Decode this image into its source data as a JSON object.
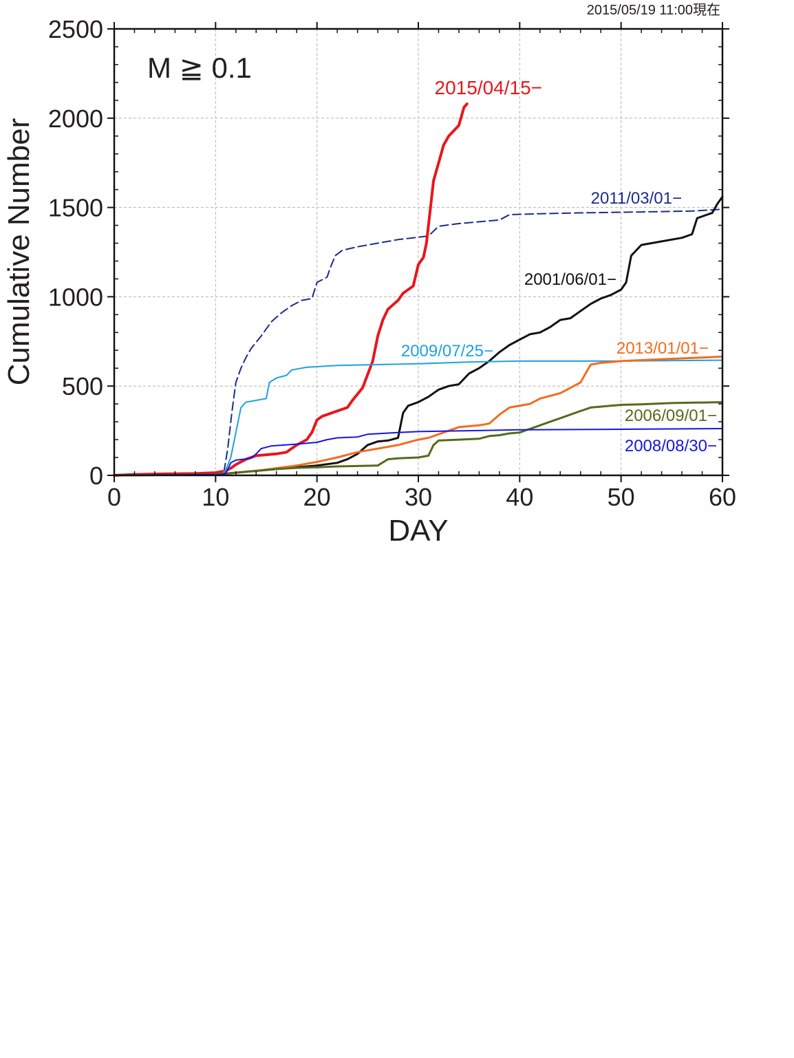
{
  "timestamp": "2015/05/19 11:00現在",
  "chart_data": {
    "type": "line",
    "annotation": "M ≧ 0.1",
    "xlabel": "DAY",
    "ylabel": "Cumulative Number",
    "xlim": [
      0,
      60
    ],
    "ylim": [
      0,
      2500
    ],
    "xticks": [
      0,
      10,
      20,
      30,
      40,
      50,
      60
    ],
    "yticks": [
      0,
      500,
      1000,
      1500,
      2000,
      2500
    ],
    "grid": true,
    "series": [
      {
        "name": "2011/03/01−",
        "color": "#1c2a8c",
        "dashed": true,
        "width": 2,
        "points": [
          [
            0,
            0
          ],
          [
            10.8,
            10
          ],
          [
            11.2,
            150
          ],
          [
            11.6,
            350
          ],
          [
            12,
            520
          ],
          [
            12.5,
            600
          ],
          [
            13,
            660
          ],
          [
            13.5,
            710
          ],
          [
            14.5,
            780
          ],
          [
            15.5,
            860
          ],
          [
            16.5,
            910
          ],
          [
            17.5,
            950
          ],
          [
            18.5,
            980
          ],
          [
            19.5,
            990
          ],
          [
            20,
            1080
          ],
          [
            21,
            1110
          ],
          [
            21.3,
            1160
          ],
          [
            21.8,
            1230
          ],
          [
            22.5,
            1260
          ],
          [
            24,
            1280
          ],
          [
            26,
            1300
          ],
          [
            28,
            1320
          ],
          [
            29.5,
            1330
          ],
          [
            31,
            1340
          ],
          [
            32,
            1395
          ],
          [
            34,
            1410
          ],
          [
            36,
            1420
          ],
          [
            38,
            1430
          ],
          [
            39,
            1460
          ],
          [
            42,
            1465
          ],
          [
            46,
            1470
          ],
          [
            52,
            1475
          ],
          [
            57,
            1480
          ],
          [
            60,
            1490
          ]
        ]
      },
      {
        "name": "2015/04/15−",
        "color": "#e8161b",
        "dashed": false,
        "width": 4,
        "points": [
          [
            0,
            0
          ],
          [
            2,
            5
          ],
          [
            5,
            8
          ],
          [
            8,
            10
          ],
          [
            10,
            15
          ],
          [
            11,
            25
          ],
          [
            11.5,
            40
          ],
          [
            12,
            60
          ],
          [
            13,
            90
          ],
          [
            14,
            110
          ],
          [
            16,
            120
          ],
          [
            17,
            130
          ],
          [
            18,
            170
          ],
          [
            19,
            200
          ],
          [
            19.5,
            240
          ],
          [
            20,
            310
          ],
          [
            20.5,
            330
          ],
          [
            22,
            360
          ],
          [
            23,
            380
          ],
          [
            23.5,
            420
          ],
          [
            24.5,
            490
          ],
          [
            25.5,
            640
          ],
          [
            26,
            780
          ],
          [
            26.5,
            870
          ],
          [
            27,
            930
          ],
          [
            28,
            980
          ],
          [
            28.5,
            1020
          ],
          [
            29,
            1040
          ],
          [
            29.5,
            1060
          ],
          [
            30,
            1180
          ],
          [
            30.5,
            1220
          ],
          [
            30.8,
            1300
          ],
          [
            31.2,
            1500
          ],
          [
            31.5,
            1650
          ],
          [
            32,
            1750
          ],
          [
            32.5,
            1850
          ],
          [
            33,
            1900
          ],
          [
            33.5,
            1930
          ],
          [
            34,
            1960
          ],
          [
            34.5,
            2060
          ],
          [
            34.8,
            2080
          ]
        ]
      },
      {
        "name": "2001/06/01−",
        "color": "#111111",
        "dashed": false,
        "width": 3,
        "points": [
          [
            0,
            0
          ],
          [
            10,
            5
          ],
          [
            12,
            15
          ],
          [
            14,
            25
          ],
          [
            16,
            35
          ],
          [
            18,
            45
          ],
          [
            20,
            55
          ],
          [
            22,
            70
          ],
          [
            23,
            90
          ],
          [
            24,
            120
          ],
          [
            25,
            170
          ],
          [
            26,
            190
          ],
          [
            27,
            195
          ],
          [
            28,
            210
          ],
          [
            28.5,
            350
          ],
          [
            29,
            390
          ],
          [
            30,
            410
          ],
          [
            31,
            440
          ],
          [
            32,
            480
          ],
          [
            33,
            500
          ],
          [
            34,
            510
          ],
          [
            35,
            570
          ],
          [
            36,
            600
          ],
          [
            37,
            640
          ],
          [
            38,
            690
          ],
          [
            39,
            730
          ],
          [
            40,
            760
          ],
          [
            41,
            790
          ],
          [
            42,
            800
          ],
          [
            43,
            830
          ],
          [
            44,
            870
          ],
          [
            45,
            880
          ],
          [
            46,
            920
          ],
          [
            47,
            960
          ],
          [
            48,
            990
          ],
          [
            49,
            1010
          ],
          [
            50,
            1040
          ],
          [
            50.5,
            1080
          ],
          [
            51,
            1230
          ],
          [
            52,
            1290
          ],
          [
            54,
            1310
          ],
          [
            56,
            1330
          ],
          [
            57,
            1350
          ],
          [
            57.5,
            1440
          ],
          [
            58.5,
            1460
          ],
          [
            59,
            1470
          ],
          [
            59.5,
            1520
          ],
          [
            60,
            1560
          ]
        ]
      },
      {
        "name": "2009/07/25−",
        "color": "#1da1e2",
        "dashed": false,
        "width": 2,
        "points": [
          [
            0,
            0
          ],
          [
            10.5,
            5
          ],
          [
            11,
            30
          ],
          [
            11.5,
            100
          ],
          [
            12,
            240
          ],
          [
            12.5,
            380
          ],
          [
            13,
            410
          ],
          [
            14,
            420
          ],
          [
            15,
            430
          ],
          [
            15.3,
            520
          ],
          [
            16,
            545
          ],
          [
            17,
            560
          ],
          [
            17.5,
            590
          ],
          [
            19,
            605
          ],
          [
            22,
            615
          ],
          [
            26,
            620
          ],
          [
            30,
            625
          ],
          [
            35,
            635
          ],
          [
            40,
            640
          ],
          [
            50,
            640
          ],
          [
            60,
            645
          ]
        ]
      },
      {
        "name": "2013/01/01−",
        "color": "#f26c1f",
        "dashed": false,
        "width": 3,
        "points": [
          [
            0,
            0
          ],
          [
            10,
            5
          ],
          [
            12,
            15
          ],
          [
            14,
            25
          ],
          [
            16,
            40
          ],
          [
            18,
            55
          ],
          [
            20,
            75
          ],
          [
            22,
            100
          ],
          [
            24,
            130
          ],
          [
            26,
            150
          ],
          [
            28,
            170
          ],
          [
            30,
            200
          ],
          [
            31,
            210
          ],
          [
            32,
            230
          ],
          [
            33,
            250
          ],
          [
            34,
            270
          ],
          [
            36,
            280
          ],
          [
            37,
            290
          ],
          [
            38,
            340
          ],
          [
            39,
            380
          ],
          [
            41,
            400
          ],
          [
            42,
            430
          ],
          [
            44,
            460
          ],
          [
            45,
            490
          ],
          [
            46,
            520
          ],
          [
            46.5,
            570
          ],
          [
            47,
            620
          ],
          [
            48,
            630
          ],
          [
            50,
            640
          ],
          [
            54,
            650
          ],
          [
            58,
            660
          ],
          [
            60,
            665
          ]
        ]
      },
      {
        "name": "2006/09/01−",
        "color": "#546b19",
        "dashed": false,
        "width": 3,
        "points": [
          [
            0,
            0
          ],
          [
            10,
            5
          ],
          [
            12,
            15
          ],
          [
            14,
            25
          ],
          [
            16,
            35
          ],
          [
            18,
            42
          ],
          [
            20,
            45
          ],
          [
            22,
            50
          ],
          [
            26,
            55
          ],
          [
            27,
            90
          ],
          [
            28,
            95
          ],
          [
            30,
            100
          ],
          [
            31,
            110
          ],
          [
            31.5,
            170
          ],
          [
            32,
            195
          ],
          [
            34,
            200
          ],
          [
            36,
            205
          ],
          [
            37,
            220
          ],
          [
            38,
            225
          ],
          [
            39,
            235
          ],
          [
            40,
            240
          ],
          [
            41,
            260
          ],
          [
            42,
            280
          ],
          [
            43,
            300
          ],
          [
            44,
            320
          ],
          [
            45,
            340
          ],
          [
            46,
            360
          ],
          [
            47,
            380
          ],
          [
            48,
            385
          ],
          [
            50,
            395
          ],
          [
            52,
            398
          ],
          [
            55,
            405
          ],
          [
            60,
            410
          ]
        ]
      },
      {
        "name": "2008/08/30−",
        "color": "#1515e0",
        "dashed": false,
        "width": 2,
        "points": [
          [
            0,
            0
          ],
          [
            10.5,
            5
          ],
          [
            11,
            10
          ],
          [
            11.5,
            70
          ],
          [
            12,
            85
          ],
          [
            13.5,
            95
          ],
          [
            14,
            120
          ],
          [
            14.5,
            150
          ],
          [
            15.5,
            165
          ],
          [
            18,
            175
          ],
          [
            20,
            185
          ],
          [
            21,
            200
          ],
          [
            22,
            210
          ],
          [
            24,
            215
          ],
          [
            25,
            230
          ],
          [
            28,
            240
          ],
          [
            30,
            245
          ],
          [
            35,
            250
          ],
          [
            40,
            255
          ],
          [
            50,
            258
          ],
          [
            60,
            262
          ]
        ]
      }
    ]
  }
}
